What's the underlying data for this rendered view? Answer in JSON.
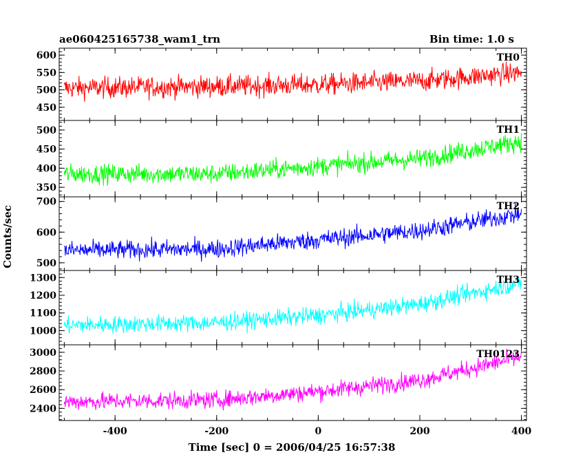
{
  "header": {
    "title": "ae060425165738_wam1_trn",
    "bin_time": "Bin time: 1.0 s"
  },
  "chart_data": {
    "type": "line",
    "xlabel": "Time [sec] 0 = 2006/04/25 16:57:38",
    "ylabel": "Counts/sec",
    "xlim": [
      -510,
      410
    ],
    "xticks": [
      -400,
      -200,
      0,
      200,
      400
    ],
    "x_range": [
      -500,
      400
    ],
    "panels": [
      {
        "name": "TH0",
        "color": "#ff0000",
        "ylim": [
          412,
          620
        ],
        "yticks": [
          450,
          500,
          550,
          600
        ],
        "trend": [
          [
            -500,
            505
          ],
          [
            -200,
            510
          ],
          [
            0,
            515
          ],
          [
            200,
            525
          ],
          [
            400,
            550
          ]
        ],
        "noise": 28
      },
      {
        "name": "TH1",
        "color": "#00ff00",
        "ylim": [
          325,
          525
        ],
        "yticks": [
          350,
          400,
          450,
          500
        ],
        "trend": [
          [
            -500,
            385
          ],
          [
            -200,
            385
          ],
          [
            0,
            405
          ],
          [
            200,
            425
          ],
          [
            400,
            470
          ]
        ],
        "noise": 23
      },
      {
        "name": "TH2",
        "color": "#0000ff",
        "ylim": [
          475,
          715
        ],
        "yticks": [
          500,
          600,
          700
        ],
        "trend": [
          [
            -500,
            540
          ],
          [
            -200,
            545
          ],
          [
            0,
            575
          ],
          [
            200,
            605
          ],
          [
            400,
            660
          ]
        ],
        "noise": 28
      },
      {
        "name": "TH3",
        "color": "#00ffff",
        "ylim": [
          920,
          1340
        ],
        "yticks": [
          1000,
          1100,
          1200,
          1300
        ],
        "trend": [
          [
            -500,
            1030
          ],
          [
            -200,
            1045
          ],
          [
            0,
            1085
          ],
          [
            200,
            1150
          ],
          [
            400,
            1270
          ]
        ],
        "noise": 45
      },
      {
        "name": "TH0123",
        "color": "#ff00ff",
        "ylim": [
          2270,
          3080
        ],
        "yticks": [
          2400,
          2600,
          2800,
          3000
        ],
        "trend": [
          [
            -500,
            2470
          ],
          [
            -200,
            2490
          ],
          [
            0,
            2580
          ],
          [
            200,
            2700
          ],
          [
            400,
            2950
          ]
        ],
        "noise": 85
      }
    ]
  }
}
